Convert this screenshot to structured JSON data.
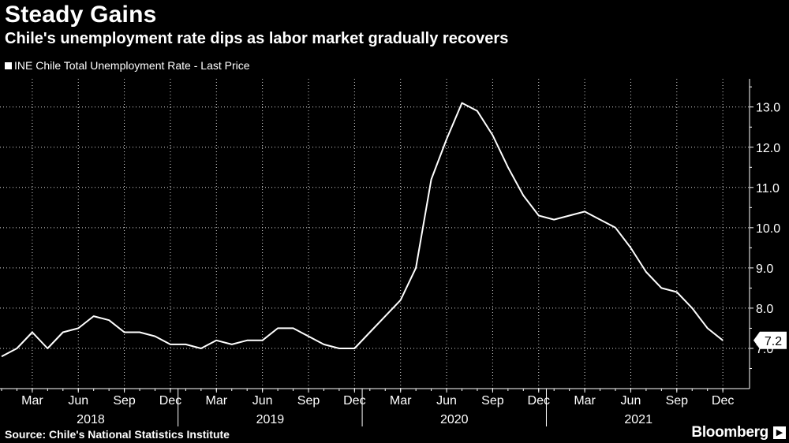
{
  "title": "Steady Gains",
  "subtitle": "Chile's unemployment rate dips as labor market gradually recovers",
  "legend": "INE Chile Total Unemployment Rate - Last Price",
  "source": "Source: Chile's National Statistics Institute",
  "brand": "Bloomberg",
  "chart_data": {
    "type": "line",
    "title": "Steady Gains",
    "subtitle": "Chile's unemployment rate dips as labor market gradually recovers",
    "series": [
      {
        "name": "INE Chile Total Unemployment Rate - Last Price",
        "color": "#ffffff",
        "x": [
          "2018-01",
          "2018-02",
          "2018-03",
          "2018-04",
          "2018-05",
          "2018-06",
          "2018-07",
          "2018-08",
          "2018-09",
          "2018-10",
          "2018-11",
          "2018-12",
          "2019-01",
          "2019-02",
          "2019-03",
          "2019-04",
          "2019-05",
          "2019-06",
          "2019-07",
          "2019-08",
          "2019-09",
          "2019-10",
          "2019-11",
          "2019-12",
          "2020-01",
          "2020-02",
          "2020-03",
          "2020-04",
          "2020-05",
          "2020-06",
          "2020-07",
          "2020-08",
          "2020-09",
          "2020-10",
          "2020-11",
          "2020-12",
          "2021-01",
          "2021-02",
          "2021-03",
          "2021-04",
          "2021-05",
          "2021-06",
          "2021-07",
          "2021-08",
          "2021-09",
          "2021-10",
          "2021-11",
          "2021-12"
        ],
        "values": [
          6.8,
          7.0,
          7.4,
          7.0,
          7.4,
          7.5,
          7.8,
          7.7,
          7.4,
          7.4,
          7.3,
          7.1,
          7.1,
          7.0,
          7.2,
          7.1,
          7.2,
          7.2,
          7.5,
          7.5,
          7.3,
          7.1,
          7.0,
          7.0,
          7.4,
          7.8,
          8.2,
          9.0,
          11.2,
          12.2,
          13.1,
          12.9,
          12.3,
          11.5,
          10.8,
          10.3,
          10.2,
          10.3,
          10.4,
          10.2,
          10.0,
          9.5,
          8.9,
          8.5,
          8.4,
          8.0,
          7.5,
          7.2
        ]
      }
    ],
    "last_value_label": "7.2",
    "y_ticks": [
      "7.0",
      "8.0",
      "9.0",
      "10.0",
      "11.0",
      "12.0",
      "13.0"
    ],
    "y_tick_values": [
      7,
      8,
      9,
      10,
      11,
      12,
      13
    ],
    "ylim": [
      6.0,
      13.7
    ],
    "y_axis_side": "right",
    "x_ticks": [
      {
        "label": "Mar",
        "x": "2018-03"
      },
      {
        "label": "Jun",
        "x": "2018-06"
      },
      {
        "label": "Sep",
        "x": "2018-09"
      },
      {
        "label": "Dec",
        "x": "2018-12"
      },
      {
        "label": "Mar",
        "x": "2019-03"
      },
      {
        "label": "Jun",
        "x": "2019-06"
      },
      {
        "label": "Sep",
        "x": "2019-09"
      },
      {
        "label": "Dec",
        "x": "2019-12"
      },
      {
        "label": "Mar",
        "x": "2020-03"
      },
      {
        "label": "Jun",
        "x": "2020-06"
      },
      {
        "label": "Sep",
        "x": "2020-09"
      },
      {
        "label": "Dec",
        "x": "2020-12"
      },
      {
        "label": "Mar",
        "x": "2021-03"
      },
      {
        "label": "Jun",
        "x": "2021-06"
      },
      {
        "label": "Sep",
        "x": "2021-09"
      },
      {
        "label": "Dec",
        "x": "2021-12"
      }
    ],
    "years": [
      "2018",
      "2019",
      "2020",
      "2021"
    ],
    "grid": true,
    "legend_position": "top-left"
  }
}
